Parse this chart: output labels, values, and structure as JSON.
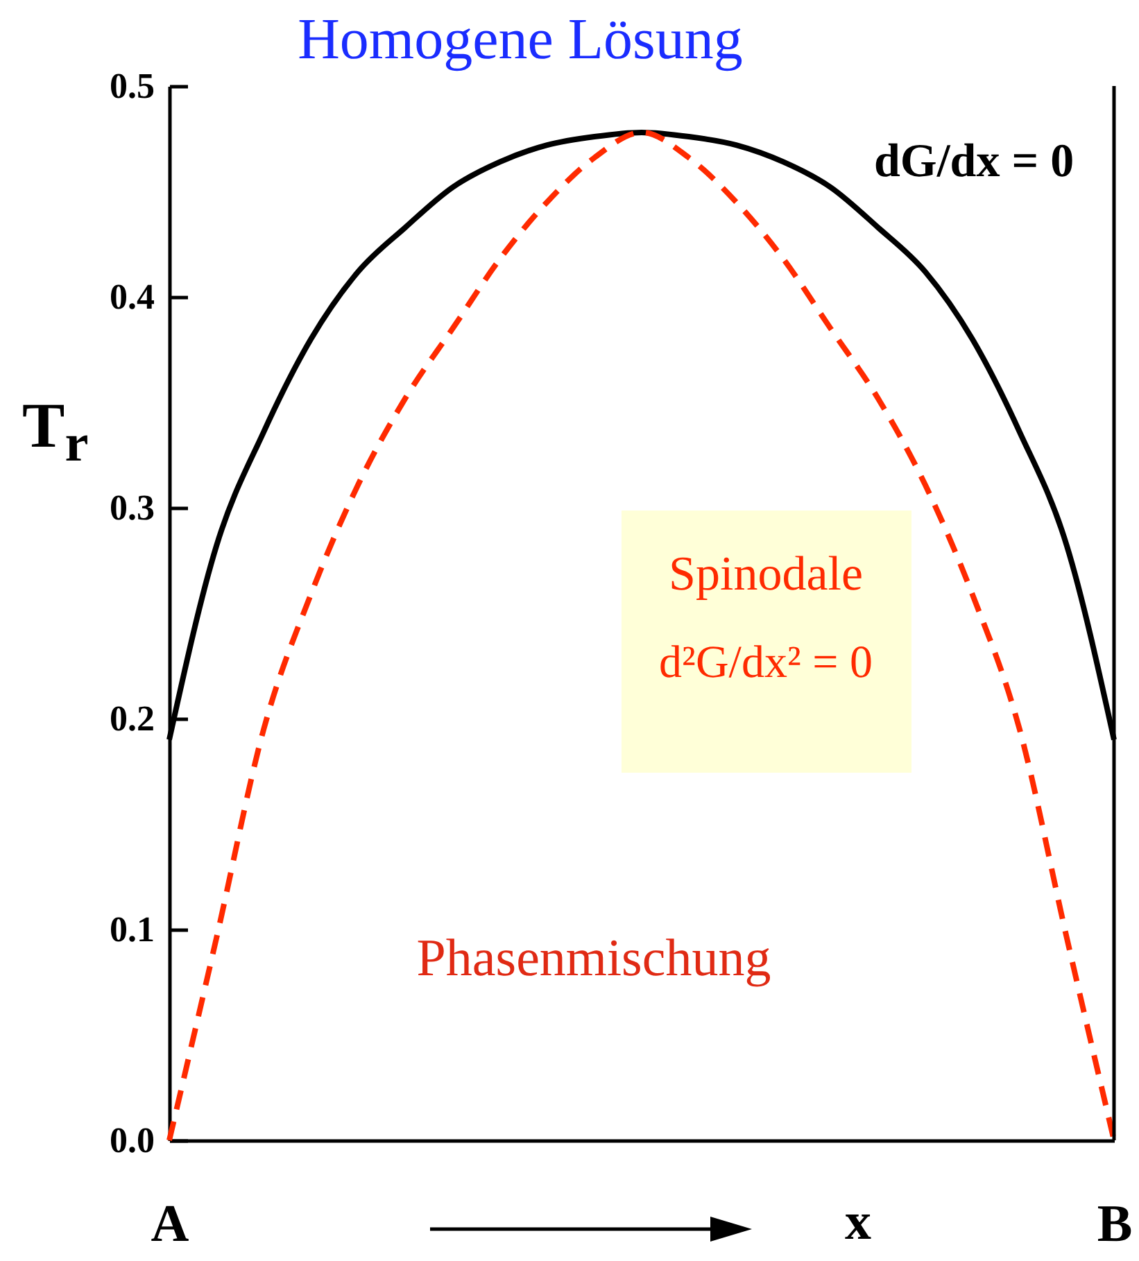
{
  "chart_data": {
    "type": "line",
    "title": "Homogene Lösung",
    "xlabel": "x",
    "ylabel": "T$_{r}$",
    "categories": [
      "A",
      null,
      null,
      null,
      null,
      null,
      null,
      null,
      null,
      null,
      null,
      null,
      null,
      null,
      null,
      null,
      null,
      null,
      null,
      null,
      "B"
    ],
    "ylim": [
      0,
      0.5
    ],
    "yticks": [
      {
        "value": 0,
        "label": "0.0"
      },
      0.1,
      0.2,
      0.3,
      0.4,
      0.5
    ],
    "grid": false,
    "marker": "none",
    "annotations": [
      "dG/dx = 0",
      "Spinodale",
      "d²G/dx² = 0",
      "Phasenmischung"
    ],
    "series": [
      {
        "color": "#000000",
        "line_style": "solid",
        "values": [
          0.19,
          0.282,
          0.336,
          0.38,
          0.412,
          0.433,
          0.452,
          0.464,
          0.472,
          0.476,
          0.478,
          0.476,
          0.472,
          0.464,
          0.452,
          0.433,
          0.412,
          0.38,
          0.336,
          0.282,
          0.19
        ]
      },
      {
        "color": "#ff2a00",
        "line_style": "dashed",
        "values": [
          0,
          0.096,
          0.195,
          0.259,
          0.311,
          0.352,
          0.385,
          0.418,
          0.445,
          0.466,
          0.478,
          0.466,
          0.445,
          0.418,
          0.385,
          0.352,
          0.311,
          0.259,
          0.195,
          0.096,
          0
        ]
      }
    ]
  }
}
